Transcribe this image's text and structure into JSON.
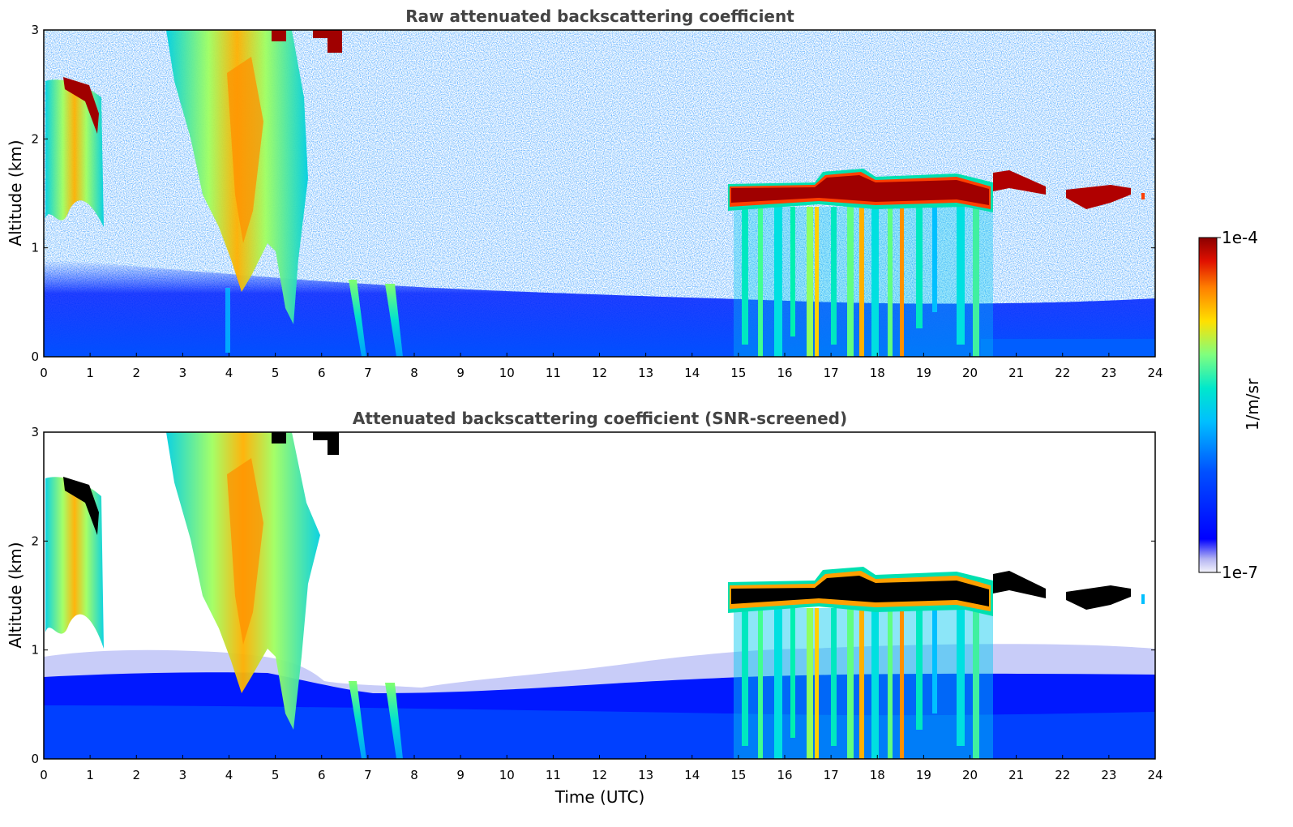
{
  "chart_data": [
    {
      "type": "heatmap",
      "title": "Raw attenuated backscattering coefficient",
      "xlabel": "",
      "ylabel": "Altitude (km)",
      "xlim": [
        0,
        24
      ],
      "ylim": [
        0,
        3
      ],
      "x_ticks": [
        "0",
        "1",
        "2",
        "3",
        "4",
        "5",
        "6",
        "7",
        "8",
        "9",
        "10",
        "11",
        "12",
        "13",
        "14",
        "15",
        "16",
        "17",
        "18",
        "19",
        "20",
        "21",
        "22",
        "23",
        "24"
      ],
      "y_ticks": [
        "0",
        "1",
        "2",
        "3"
      ],
      "cloud_layers": [
        {
          "start": 14.8,
          "end": 20.4,
          "base_km": 1.35,
          "top_km": 1.7
        },
        {
          "start": 20.5,
          "end": 21.7,
          "base_km": 1.5,
          "top_km": 1.7
        },
        {
          "start": 22.2,
          "end": 23.4,
          "base_km": 1.35,
          "top_km": 1.55
        }
      ],
      "boundary_layer_top_km": 0.6
    },
    {
      "type": "heatmap",
      "title": "Attenuated backscattering coefficient (SNR-screened)",
      "xlabel": "Time (UTC)",
      "ylabel": "Altitude (km)",
      "xlim": [
        0,
        24
      ],
      "ylim": [
        0,
        3
      ],
      "x_ticks": [
        "0",
        "1",
        "2",
        "3",
        "4",
        "5",
        "6",
        "7",
        "8",
        "9",
        "10",
        "11",
        "12",
        "13",
        "14",
        "15",
        "16",
        "17",
        "18",
        "19",
        "20",
        "21",
        "22",
        "23",
        "24"
      ],
      "y_ticks": [
        "0",
        "1",
        "2",
        "3"
      ],
      "screening": "SNR",
      "boundary_layer_top_km": 0.8
    }
  ],
  "colorbar": {
    "label": "1/m/sr",
    "max_label": "1e-4",
    "min_label": "1e-7",
    "scale": "log",
    "colormap": [
      "#f4f4fb",
      "#b4b4f2",
      "#0000ff",
      "#0050ff",
      "#00bfff",
      "#00e8cc",
      "#7fff7f",
      "#ffe000",
      "#ff8000",
      "#e01000",
      "#8b0000"
    ]
  }
}
